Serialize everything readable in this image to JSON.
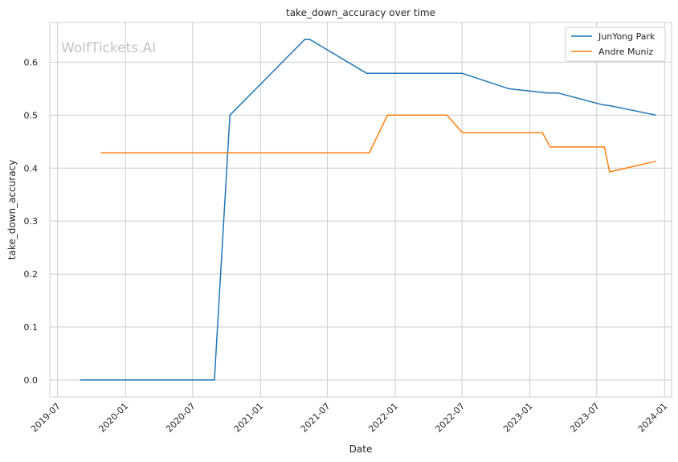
{
  "chart_data": {
    "type": "line",
    "title": "take_down_accuracy over time",
    "xlabel": "Date",
    "ylabel": "take_down_accuracy",
    "watermark": "WolfTickets.AI",
    "x_ticks": [
      "2019-07",
      "2020-01",
      "2020-07",
      "2021-01",
      "2021-07",
      "2022-01",
      "2022-07",
      "2023-01",
      "2023-07",
      "2024-01"
    ],
    "y_ticks": [
      "0.0",
      "0.1",
      "0.2",
      "0.3",
      "0.4",
      "0.5",
      "0.6"
    ],
    "xlim": [
      "2019-06-10",
      "2024-01-20"
    ],
    "ylim": [
      -0.032,
      0.675
    ],
    "grid": true,
    "legend_position": "top-right",
    "series": [
      {
        "name": "JunYong Park",
        "color": "#1f77b4",
        "points": [
          [
            "2019-08-31",
            0.0
          ],
          [
            "2020-08-29",
            0.0
          ],
          [
            "2020-10-10",
            0.5
          ],
          [
            "2021-05-01",
            0.643
          ],
          [
            "2021-05-15",
            0.643
          ],
          [
            "2021-10-16",
            0.579
          ],
          [
            "2022-07-02",
            0.579
          ],
          [
            "2022-11-05",
            0.55
          ],
          [
            "2023-02-18",
            0.542
          ],
          [
            "2023-03-18",
            0.542
          ],
          [
            "2023-07-15",
            0.52
          ],
          [
            "2023-08-05",
            0.518
          ],
          [
            "2023-12-09",
            0.5
          ]
        ]
      },
      {
        "name": "Andre Muniz",
        "color": "#ff7f0e",
        "points": [
          [
            "2019-10-26",
            0.429
          ],
          [
            "2021-10-23",
            0.429
          ],
          [
            "2021-12-11",
            0.5
          ],
          [
            "2022-05-21",
            0.5
          ],
          [
            "2022-07-02",
            0.467
          ],
          [
            "2023-02-04",
            0.467
          ],
          [
            "2023-02-25",
            0.44
          ],
          [
            "2023-07-22",
            0.44
          ],
          [
            "2023-08-05",
            0.393
          ],
          [
            "2023-12-09",
            0.413
          ]
        ]
      }
    ]
  }
}
